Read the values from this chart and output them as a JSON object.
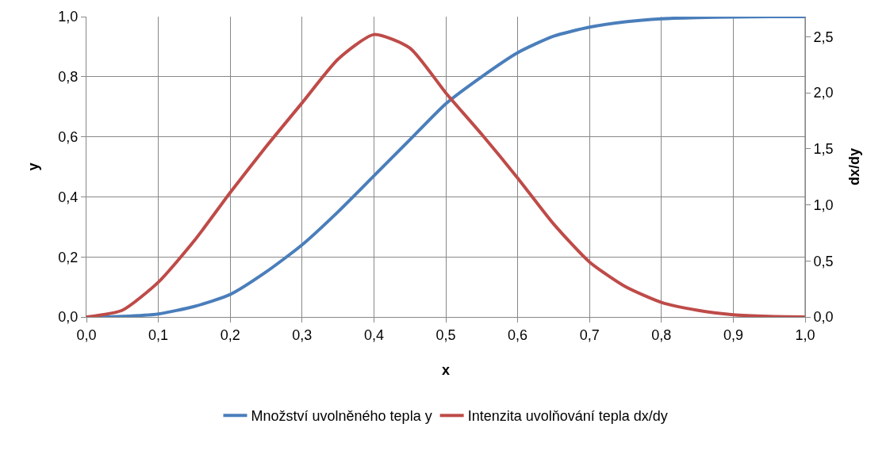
{
  "chart_data": {
    "type": "line",
    "xlabel": "x",
    "ylabel": "y",
    "y2label": "dx/dy",
    "x": [
      0,
      0.05,
      0.1,
      0.15,
      0.2,
      0.25,
      0.3,
      0.35,
      0.4,
      0.45,
      0.5,
      0.55,
      0.6,
      0.65,
      0.7,
      0.75,
      0.8,
      0.85,
      0.9,
      0.95,
      1.0
    ],
    "series": [
      {
        "name": "Množství uvolněného tepla y",
        "color": "#4a7ebb",
        "values": [
          0,
          0.002,
          0.01,
          0.035,
          0.075,
          0.15,
          0.24,
          0.35,
          0.47,
          0.59,
          0.71,
          0.8,
          0.88,
          0.935,
          0.965,
          0.983,
          0.993,
          0.997,
          0.999,
          1.0,
          1.0
        ]
      },
      {
        "name": "Intenzita uvolňování tepla dx/dy",
        "color": "#be4b48",
        "axis": "y2",
        "values": [
          0,
          0.06,
          0.31,
          0.68,
          1.11,
          1.52,
          1.91,
          2.3,
          2.52,
          2.4,
          2.0,
          1.63,
          1.24,
          0.83,
          0.49,
          0.27,
          0.13,
          0.06,
          0.02,
          0.005,
          0
        ]
      }
    ],
    "xlim": [
      0,
      1
    ],
    "xticks": [
      {
        "value": 0,
        "label": "0,0"
      },
      {
        "value": 0.1,
        "label": "0,1"
      },
      {
        "value": 0.2,
        "label": "0,2"
      },
      {
        "value": 0.3,
        "label": "0,3"
      },
      {
        "value": 0.4,
        "label": "0,4"
      },
      {
        "value": 0.5,
        "label": "0,5"
      },
      {
        "value": 0.6,
        "label": "0,6"
      },
      {
        "value": 0.7,
        "label": "0,7"
      },
      {
        "value": 0.8,
        "label": "0,8"
      },
      {
        "value": 0.9,
        "label": "0,9"
      },
      {
        "value": 1,
        "label": "1,0"
      }
    ],
    "ylim": [
      0,
      1
    ],
    "yticks": [
      {
        "value": 0,
        "label": "0,0"
      },
      {
        "value": 0.2,
        "label": "0,2"
      },
      {
        "value": 0.4,
        "label": "0,4"
      },
      {
        "value": 0.6,
        "label": "0,6"
      },
      {
        "value": 0.8,
        "label": "0,8"
      },
      {
        "value": 1,
        "label": "1,0"
      }
    ],
    "y2lim": [
      0,
      2.68
    ],
    "y2ticks": [
      {
        "value": 0,
        "label": "0,0"
      },
      {
        "value": 0.5,
        "label": "0,5"
      },
      {
        "value": 1,
        "label": "1,0"
      },
      {
        "value": 1.5,
        "label": "1,5"
      },
      {
        "value": 2,
        "label": "2,0"
      },
      {
        "value": 2.5,
        "label": "2,5"
      }
    ],
    "grid": true,
    "legend": "bottom",
    "marker": "none",
    "line_style": "solid"
  }
}
